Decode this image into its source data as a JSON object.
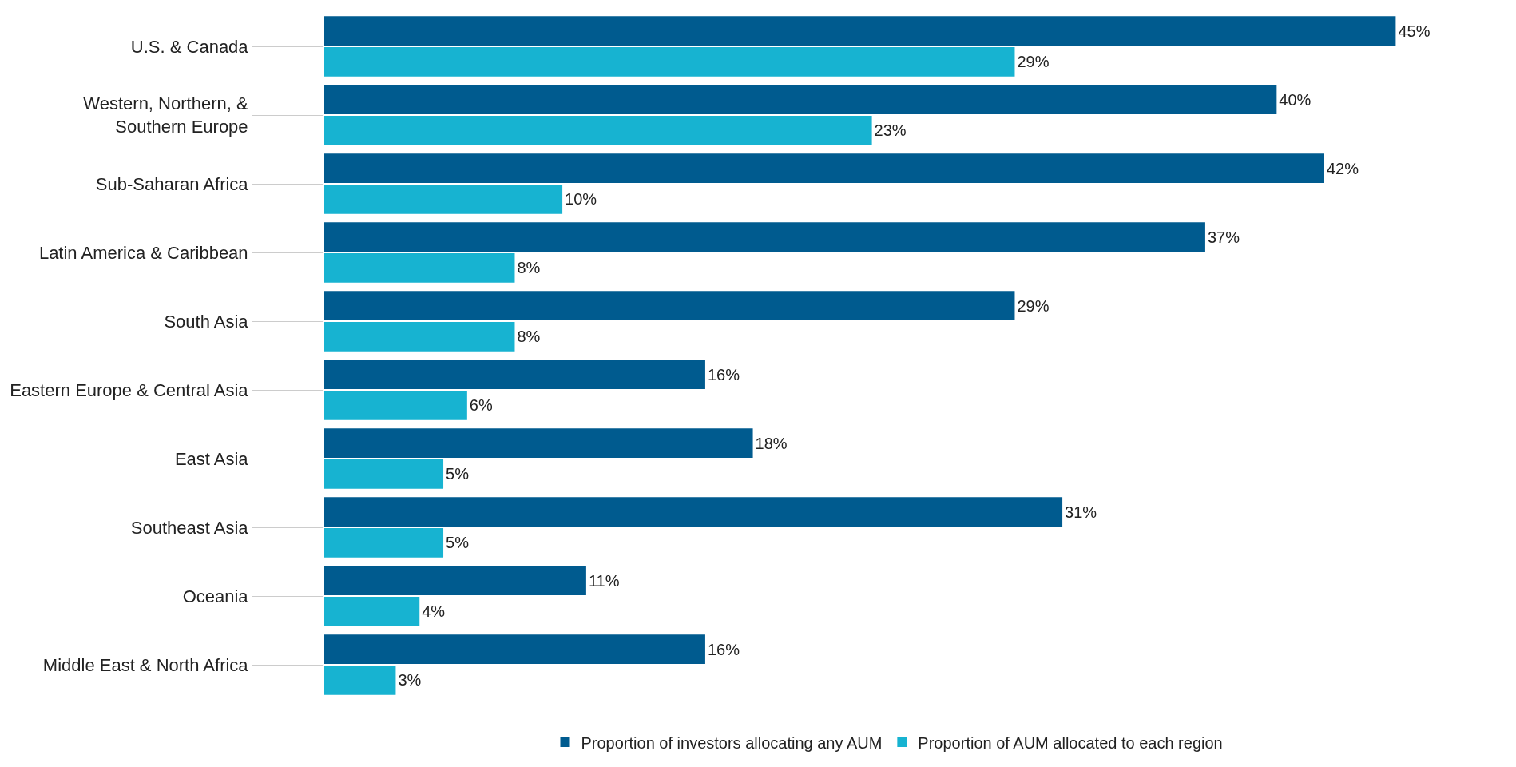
{
  "chart_data": {
    "type": "bar",
    "orientation": "horizontal",
    "categories": [
      "U.S. & Canada",
      "Western, Northern, &\nSouthern Europe",
      "Sub-Saharan Africa",
      "Latin America & Caribbean",
      "South Asia",
      "Eastern Europe & Central Asia",
      "East Asia",
      "Southeast Asia",
      "Oceania",
      "Middle East & North Africa"
    ],
    "series": [
      {
        "name": "Proportion of investors allocating any AUM",
        "color": "#005b8f",
        "values": [
          45,
          40,
          42,
          37,
          29,
          16,
          18,
          31,
          11,
          16
        ],
        "value_labels": [
          "45%",
          "40%",
          "42%",
          "37%",
          "29%",
          "16%",
          "18%",
          "31%",
          "11%",
          "16%"
        ]
      },
      {
        "name": "Proportion of AUM allocated to each region",
        "color": "#17b3d1",
        "values": [
          29,
          23,
          10,
          8,
          8,
          6,
          5,
          5,
          4,
          3
        ],
        "value_labels": [
          "29%",
          "23%",
          "10%",
          "8%",
          "8%",
          "6%",
          "5%",
          "5%",
          "4%",
          "3%"
        ]
      }
    ],
    "legend": "bottom"
  }
}
